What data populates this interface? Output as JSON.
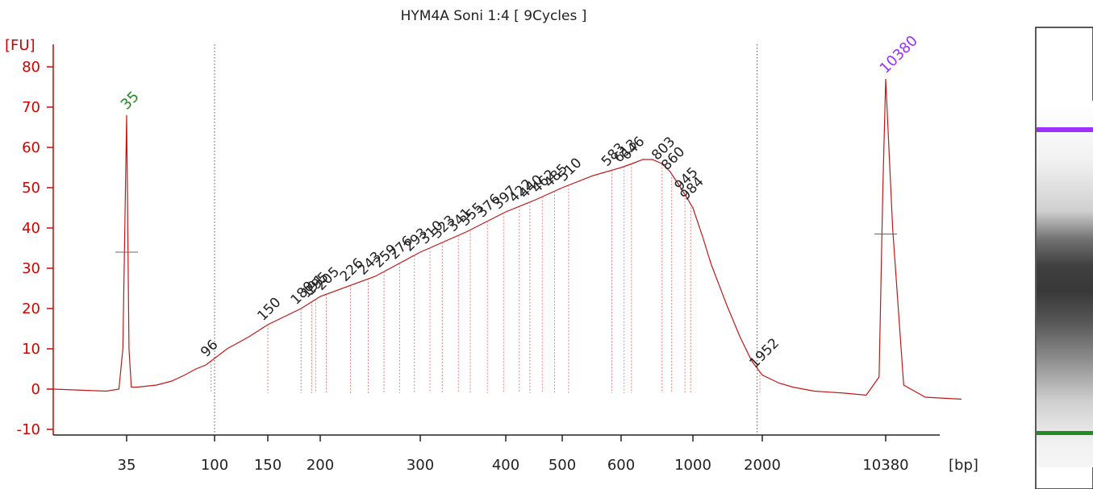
{
  "chart_data": {
    "type": "line",
    "title": "HYM4A Soni 1:4  [ 9Cycles ]",
    "ylabel": "[FU]",
    "xlabel": "[bp]",
    "ylim": [
      -10,
      85
    ],
    "y_ticks": [
      -10,
      0,
      10,
      20,
      30,
      40,
      50,
      60,
      70,
      80
    ],
    "x_ticks": [
      "35",
      "100",
      "150",
      "200",
      "300",
      "400",
      "500",
      "600",
      "1000",
      "2000",
      "10380"
    ],
    "x_scale": "log",
    "grid": false,
    "markers": [
      {
        "label": "35",
        "x": 35,
        "y": 68,
        "color": "#228b22"
      },
      {
        "label": "10380",
        "x": 10380,
        "y": 77,
        "color": "#9b30ff"
      }
    ],
    "peak_labels": [
      "96",
      "150",
      "180",
      "191",
      "195",
      "205",
      "226",
      "243",
      "259",
      "276",
      "293",
      "310",
      "323",
      "341",
      "355",
      "376",
      "397",
      "422",
      "440",
      "462",
      "485",
      "510",
      "583",
      "613",
      "646",
      "803",
      "860",
      "945",
      "984",
      "1952"
    ],
    "series": [
      {
        "name": "",
        "x": [
          20,
          30,
          33,
          34,
          35,
          36,
          37,
          40,
          50,
          60,
          70,
          80,
          90,
          96,
          110,
          130,
          150,
          180,
          200,
          250,
          300,
          350,
          400,
          450,
          500,
          550,
          600,
          650,
          700,
          750,
          800,
          850,
          900,
          950,
          1000,
          1100,
          1200,
          1400,
          1600,
          1800,
          2000,
          2500,
          3000,
          4000,
          6000,
          8000,
          9500,
          10000,
          10380,
          10800,
          11500,
          13000,
          16000
        ],
        "y": [
          0,
          -0.5,
          0,
          10,
          68,
          10,
          0.5,
          0.5,
          1,
          2,
          3.5,
          5,
          6,
          7,
          10,
          13,
          16,
          20,
          23,
          28,
          34,
          39,
          44,
          47,
          50,
          53,
          55,
          56,
          57,
          57,
          56,
          54,
          51,
          48,
          45,
          38,
          31,
          21,
          13,
          7,
          3.5,
          1.5,
          0.5,
          -0.5,
          -1,
          -1.5,
          3,
          50,
          77,
          40,
          1,
          -2,
          -2.5
        ]
      }
    ],
    "gel": {
      "upper_marker_color": "#9b30ff",
      "lower_marker_color": "#228b22"
    }
  }
}
